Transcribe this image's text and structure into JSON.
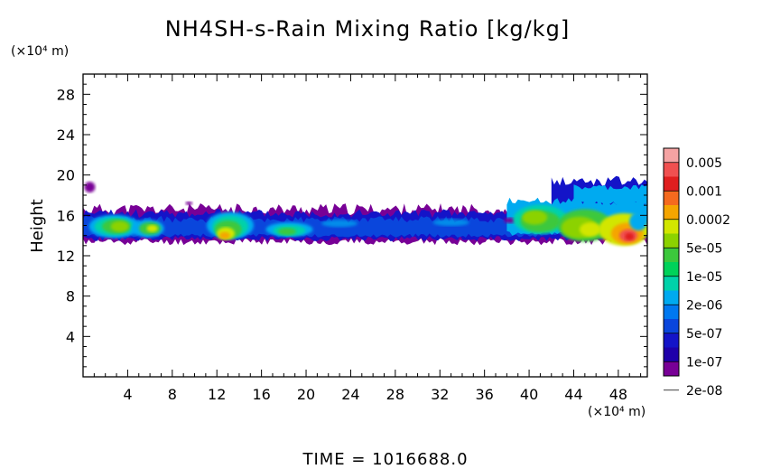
{
  "chart_data": {
    "type": "heatmap",
    "title": "NH4SH-s-Rain Mixing Ratio [kg/kg]",
    "xlabel": "",
    "ylabel": "Height",
    "x_unit_label": "(×10⁴ m)",
    "y_unit_label": "(×10⁴ m)",
    "xlim": [
      0,
      50.6
    ],
    "ylim": [
      0,
      30
    ],
    "xticks": [
      4,
      8,
      12,
      16,
      20,
      24,
      28,
      32,
      36,
      40,
      44,
      48
    ],
    "yticks": [
      4,
      8,
      12,
      16,
      20,
      24,
      28
    ],
    "grid": false,
    "colorbar": {
      "labels": [
        "0.005",
        "0.001",
        "0.0002",
        "5e-05",
        "1e-05",
        "2e-06",
        "5e-07",
        "1e-07",
        "2e-08"
      ],
      "colors": [
        "#f5a3a3",
        "#f05050",
        "#e01e1e",
        "#f56a1e",
        "#f5a500",
        "#d2e600",
        "#8cd200",
        "#3cc83c",
        "#00d25a",
        "#00d2aa",
        "#00aaf0",
        "#0078f0",
        "#0a46dc",
        "#1414c8",
        "#1e00aa",
        "#780096"
      ]
    },
    "regions": [
      {
        "x": [
          0.0,
          50.6
        ],
        "y": [
          13.6,
          16.2
        ],
        "value": "1e-07",
        "desc": "continuous dark blue band"
      },
      {
        "x": [
          0.0,
          6.5
        ],
        "y": [
          13.8,
          16.0
        ],
        "value": "5e-05"
      },
      {
        "x": [
          11.5,
          15.0
        ],
        "y": [
          13.5,
          16.5
        ],
        "value": "0.0002"
      },
      {
        "x": [
          16.0,
          21.0
        ],
        "y": [
          13.8,
          15.8
        ],
        "value": "1e-05"
      },
      {
        "x": [
          38.5,
          50.6
        ],
        "y": [
          13.0,
          17.0
        ],
        "value": "5e-05"
      },
      {
        "x": [
          46.0,
          50.0
        ],
        "y": [
          13.2,
          16.0
        ],
        "value": "0.001"
      },
      {
        "x": [
          42.0,
          50.6
        ],
        "y": [
          16.5,
          19.8
        ],
        "value": "5e-07",
        "desc": "elevated plume"
      }
    ],
    "time_label": "TIME = 1016688.0"
  }
}
